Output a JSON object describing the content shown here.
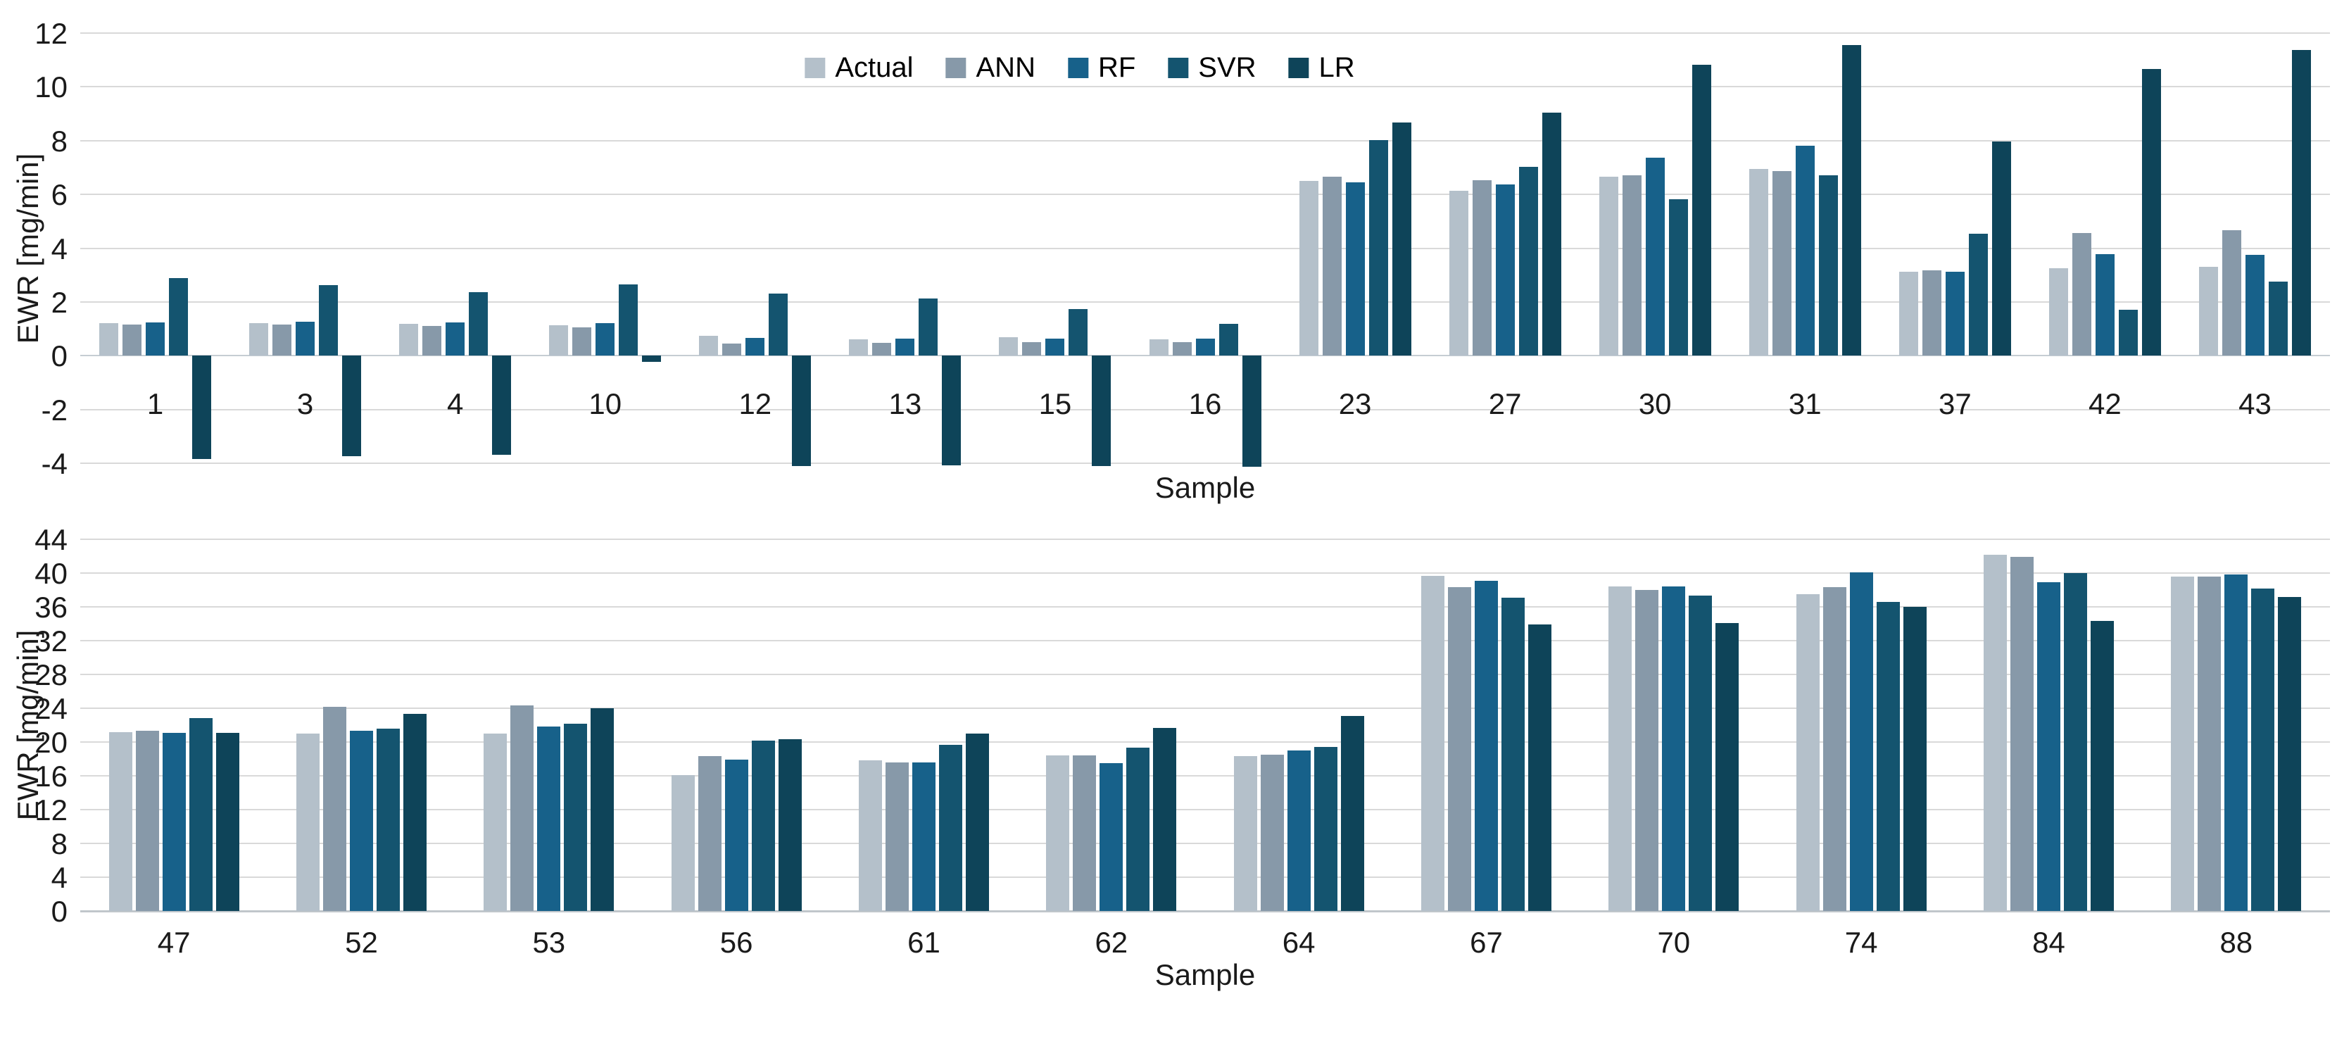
{
  "legend": {
    "items": [
      {
        "label": "Actual",
        "color": "#b4c0ca"
      },
      {
        "label": "ANN",
        "color": "#8799a9"
      },
      {
        "label": "RF",
        "color": "#17618a"
      },
      {
        "label": "SVR",
        "color": "#14546f"
      },
      {
        "label": "LR",
        "color": "#0e4459"
      }
    ]
  },
  "colors": {
    "gridline": "#d9d9d9",
    "axis_line": "#c0c6cb",
    "text": "#1a1a1a"
  },
  "chart_data": [
    {
      "type": "bar",
      "title": "",
      "xlabel": "Sample",
      "ylabel": "EWR [mg/min]",
      "ylim": [
        -4,
        12
      ],
      "ystep": 2,
      "grid": true,
      "legend_position": "top-center",
      "categories": [
        "1",
        "3",
        "4",
        "10",
        "12",
        "13",
        "15",
        "16",
        "23",
        "27",
        "30",
        "31",
        "37",
        "42",
        "43"
      ],
      "series": [
        {
          "name": "Actual",
          "color": "#b4c0ca",
          "values": [
            1.22,
            1.21,
            1.2,
            1.14,
            0.75,
            0.62,
            0.68,
            0.61,
            6.49,
            6.13,
            6.65,
            6.96,
            3.12,
            3.26,
            3.3
          ]
        },
        {
          "name": "ANN",
          "color": "#8799a9",
          "values": [
            1.15,
            1.16,
            1.12,
            1.05,
            0.45,
            0.49,
            0.51,
            0.52,
            6.65,
            6.52,
            6.7,
            6.87,
            3.18,
            4.56,
            4.67
          ]
        },
        {
          "name": "RF",
          "color": "#17618a",
          "values": [
            1.25,
            1.27,
            1.25,
            1.21,
            0.66,
            0.63,
            0.64,
            0.63,
            6.45,
            6.36,
            7.37,
            7.8,
            3.12,
            3.78,
            3.75
          ]
        },
        {
          "name": "SVR",
          "color": "#14546f",
          "values": [
            2.9,
            2.62,
            2.36,
            2.66,
            2.32,
            2.14,
            1.73,
            1.2,
            8.01,
            7.03,
            5.81,
            6.72,
            4.53,
            1.72,
            2.77
          ]
        },
        {
          "name": "LR",
          "color": "#0e4459",
          "values": [
            -3.85,
            -3.73,
            -3.67,
            -0.22,
            -4.1,
            -4.08,
            -4.1,
            -4.12,
            8.67,
            9.04,
            10.83,
            11.55,
            7.96,
            10.66,
            11.38
          ]
        }
      ]
    },
    {
      "type": "bar",
      "title": "",
      "xlabel": "Sample",
      "ylabel": "EWR [mg/min]",
      "ylim": [
        0,
        44
      ],
      "ystep": 4,
      "grid": true,
      "legend_position": "none",
      "categories": [
        "47",
        "52",
        "53",
        "56",
        "61",
        "62",
        "64",
        "67",
        "70",
        "74",
        "84",
        "88"
      ],
      "series": [
        {
          "name": "Actual",
          "color": "#b4c0ca",
          "values": [
            21.2,
            21.0,
            21.0,
            16.1,
            17.8,
            18.4,
            18.3,
            39.7,
            38.4,
            37.5,
            42.2,
            39.6
          ]
        },
        {
          "name": "ANN",
          "color": "#8799a9",
          "values": [
            21.3,
            24.2,
            24.3,
            18.3,
            17.6,
            18.4,
            18.5,
            38.3,
            38.0,
            38.3,
            41.9,
            39.6
          ]
        },
        {
          "name": "RF",
          "color": "#17618a",
          "values": [
            21.1,
            21.3,
            21.8,
            17.9,
            17.6,
            17.5,
            19.0,
            39.1,
            38.4,
            40.1,
            38.9,
            39.8
          ]
        },
        {
          "name": "SVR",
          "color": "#14546f",
          "values": [
            22.8,
            21.6,
            22.2,
            20.2,
            19.7,
            19.3,
            19.4,
            37.1,
            37.3,
            36.6,
            40.0,
            38.2
          ]
        },
        {
          "name": "LR",
          "color": "#0e4459",
          "values": [
            21.1,
            23.3,
            24.0,
            20.3,
            21.0,
            21.7,
            23.1,
            33.9,
            34.1,
            36.0,
            34.3,
            37.2
          ]
        }
      ]
    }
  ]
}
